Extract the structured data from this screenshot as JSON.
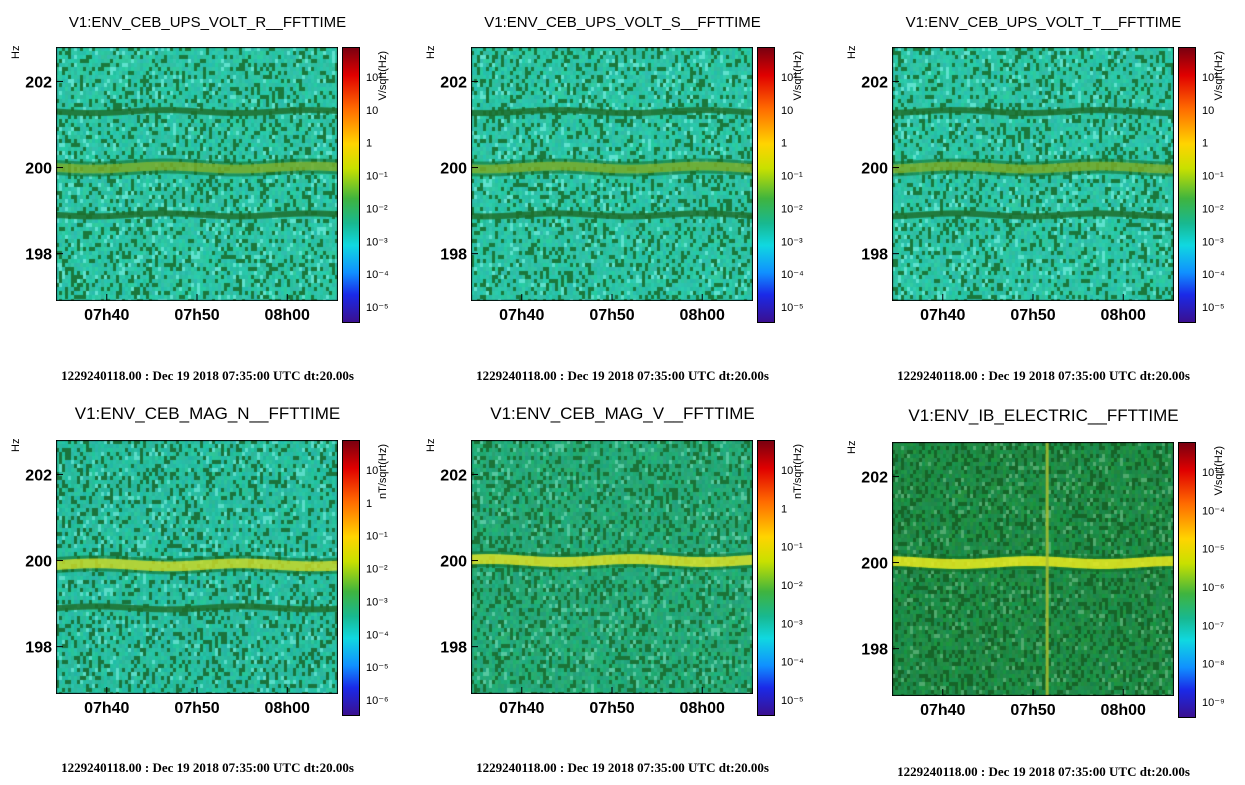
{
  "chart_data": [
    {
      "type": "heatmap",
      "title": "V1:ENV_CEB_UPS_VOLT_R__FFTTIME",
      "ylabel": "Hz",
      "ylim": [
        196.9,
        202.8
      ],
      "y_ticks": [
        "198",
        "200",
        "202"
      ],
      "x_ticks": [
        "07h40",
        "07h50",
        "08h00"
      ],
      "colorbar_label": "V/sqrt(Hz)",
      "colorbar_ticks": [
        "10²",
        "10",
        "1",
        "10⁻¹",
        "10⁻²",
        "10⁻³",
        "10⁻⁴",
        "10⁻⁵"
      ],
      "footer": "1229240118.00 : Dec 19 2018 07:35:00 UTC dt:20.00s",
      "features": [
        {
          "kind": "line",
          "freq_hz": 200.0,
          "level": "strong"
        },
        {
          "kind": "line",
          "freq_hz": 201.3,
          "level": "medium"
        },
        {
          "kind": "line",
          "freq_hz": 198.9,
          "level": "medium"
        }
      ]
    },
    {
      "type": "heatmap",
      "title": "V1:ENV_CEB_UPS_VOLT_S__FFTTIME",
      "ylabel": "Hz",
      "ylim": [
        196.9,
        202.8
      ],
      "y_ticks": [
        "198",
        "200",
        "202"
      ],
      "x_ticks": [
        "07h40",
        "07h50",
        "08h00"
      ],
      "colorbar_label": "V/sqrt(Hz)",
      "colorbar_ticks": [
        "10²",
        "10",
        "1",
        "10⁻¹",
        "10⁻²",
        "10⁻³",
        "10⁻⁴",
        "10⁻⁵"
      ],
      "footer": "1229240118.00 : Dec 19 2018 07:35:00 UTC dt:20.00s",
      "features": [
        {
          "kind": "line",
          "freq_hz": 200.0,
          "level": "strong"
        },
        {
          "kind": "line",
          "freq_hz": 201.3,
          "level": "medium"
        },
        {
          "kind": "line",
          "freq_hz": 198.9,
          "level": "medium"
        }
      ]
    },
    {
      "type": "heatmap",
      "title": "V1:ENV_CEB_UPS_VOLT_T__FFTTIME",
      "ylabel": "Hz",
      "ylim": [
        196.9,
        202.8
      ],
      "y_ticks": [
        "198",
        "200",
        "202"
      ],
      "x_ticks": [
        "07h40",
        "07h50",
        "08h00"
      ],
      "colorbar_label": "V/sqrt(Hz)",
      "colorbar_ticks": [
        "10²",
        "10",
        "1",
        "10⁻¹",
        "10⁻²",
        "10⁻³",
        "10⁻⁴",
        "10⁻⁵"
      ],
      "footer": "1229240118.00 : Dec 19 2018 07:35:00 UTC dt:20.00s",
      "features": [
        {
          "kind": "line",
          "freq_hz": 200.0,
          "level": "strong"
        },
        {
          "kind": "line",
          "freq_hz": 201.3,
          "level": "medium"
        },
        {
          "kind": "line",
          "freq_hz": 198.9,
          "level": "medium"
        }
      ]
    },
    {
      "type": "heatmap",
      "title": "V1:ENV_CEB_MAG_N__FFTTIME",
      "ylabel": "Hz",
      "ylim": [
        196.9,
        202.8
      ],
      "y_ticks": [
        "198",
        "200",
        "202"
      ],
      "x_ticks": [
        "07h40",
        "07h50",
        "08h00"
      ],
      "colorbar_label": "nT/sqrt(Hz)",
      "colorbar_ticks": [
        "10",
        "1",
        "10⁻¹",
        "10⁻²",
        "10⁻³",
        "10⁻⁴",
        "10⁻⁵",
        "10⁻⁶"
      ],
      "footer": "1229240118.00 : Dec 19 2018 07:35:00 UTC dt:20.00s",
      "features": [
        {
          "kind": "line",
          "freq_hz": 199.9,
          "level": "bright"
        },
        {
          "kind": "line",
          "freq_hz": 198.9,
          "level": "medium"
        }
      ]
    },
    {
      "type": "heatmap",
      "title": "V1:ENV_CEB_MAG_V__FFTTIME",
      "ylabel": "Hz",
      "ylim": [
        196.9,
        202.8
      ],
      "y_ticks": [
        "198",
        "200",
        "202"
      ],
      "x_ticks": [
        "07h40",
        "07h50",
        "08h00"
      ],
      "colorbar_label": "nT/sqrt(Hz)",
      "colorbar_ticks": [
        "10",
        "1",
        "10⁻¹",
        "10⁻²",
        "10⁻³",
        "10⁻⁴",
        "10⁻⁵"
      ],
      "footer": "1229240118.00 : Dec 19 2018 07:35:00 UTC dt:20.00s",
      "features": [
        {
          "kind": "line",
          "freq_hz": 200.0,
          "level": "bright"
        }
      ]
    },
    {
      "type": "heatmap",
      "title": "V1:ENV_IB_ELECTRIC__FFTTIME",
      "ylabel": "Hz",
      "ylim": [
        196.9,
        202.8
      ],
      "y_ticks": [
        "198",
        "200",
        "202"
      ],
      "x_ticks": [
        "07h40",
        "07h50",
        "08h00"
      ],
      "colorbar_label": "V/sqrt(Hz)",
      "colorbar_ticks": [
        "10⁻³",
        "10⁻⁴",
        "10⁻⁵",
        "10⁻⁶",
        "10⁻⁷",
        "10⁻⁸",
        "10⁻⁹"
      ],
      "footer": "1229240118.00 : Dec 19 2018 07:35:00 UTC dt:20.00s",
      "features": [
        {
          "kind": "line",
          "freq_hz": 200.0,
          "level": "bright"
        },
        {
          "kind": "transient",
          "time": "07h51",
          "level": "medium"
        }
      ]
    }
  ]
}
